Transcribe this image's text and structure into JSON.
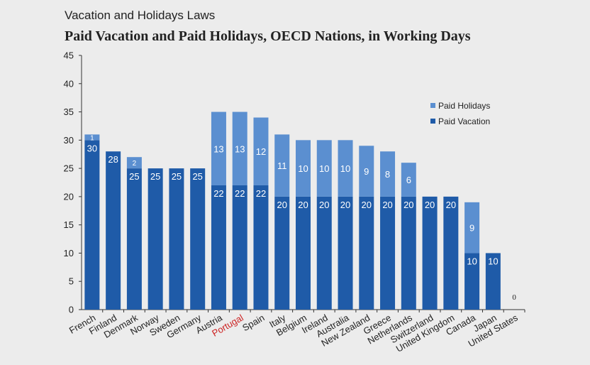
{
  "header": {
    "supertitle": "Vacation and Holidays Laws",
    "title": "Paid Vacation and Paid Holidays, OECD Nations, in Working Days"
  },
  "chart_data": {
    "type": "bar",
    "stacked": true,
    "title": "Paid Vacation and Paid Holidays, OECD Nations, in Working Days",
    "xlabel": "",
    "ylabel": "",
    "ylim": [
      0,
      45
    ],
    "yticks": [
      0,
      5,
      10,
      15,
      20,
      25,
      30,
      35,
      40,
      45
    ],
    "categories": [
      "French",
      "Finland",
      "Denmark",
      "Norway",
      "Sweden",
      "Germany",
      "Austria",
      "Portugal",
      "Spain",
      "Italy",
      "Belgium",
      "Ireland",
      "Australia",
      "New Zealand",
      "Greece",
      "Netherlands",
      "Switzerland",
      "United Kingdom",
      "Canada",
      "Japan",
      "United States"
    ],
    "highlighted_category": "Portugal",
    "series": [
      {
        "name": "Paid Vacation",
        "color": "#1f5ba8",
        "values": [
          30,
          28,
          25,
          25,
          25,
          25,
          22,
          22,
          22,
          20,
          20,
          20,
          20,
          20,
          20,
          20,
          20,
          20,
          10,
          10,
          0
        ]
      },
      {
        "name": "Paid Holidays",
        "color": "#5b8fd0",
        "values": [
          1,
          0,
          2,
          0,
          0,
          0,
          13,
          13,
          12,
          11,
          10,
          10,
          10,
          9,
          8,
          6,
          0,
          0,
          9,
          0,
          0
        ]
      }
    ],
    "zero_label": "0",
    "legend": [
      "Paid Holidays",
      "Paid Vacation"
    ],
    "legend_position": "right",
    "highlight_color": "#cc2222"
  }
}
